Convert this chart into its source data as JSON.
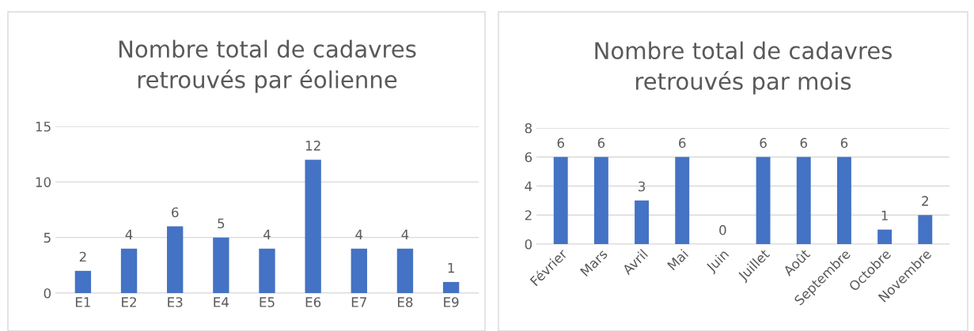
{
  "chart_data": [
    {
      "type": "bar",
      "title": "Nombre total de cadavres\nretrouvés par éolienne",
      "categories": [
        "E1",
        "E2",
        "E3",
        "E4",
        "E5",
        "E6",
        "E7",
        "E8",
        "E9"
      ],
      "values": [
        2,
        4,
        6,
        5,
        4,
        12,
        4,
        4,
        1
      ],
      "color": "#4472c4",
      "ylim": [
        0,
        15
      ],
      "yticks": [
        0,
        5,
        10,
        15
      ],
      "grid": "y",
      "data_labels": true
    },
    {
      "type": "bar",
      "title": "Nombre total de cadavres\nretrouvés par mois",
      "categories": [
        "Février",
        "Mars",
        "Avril",
        "Mai",
        "Juin",
        "Juillet",
        "Août",
        "Septembre",
        "Octobre",
        "Novembre"
      ],
      "values": [
        6,
        6,
        3,
        6,
        0,
        6,
        6,
        6,
        1,
        2
      ],
      "color": "#4472c4",
      "ylim": [
        0,
        8
      ],
      "yticks": [
        0,
        2,
        4,
        6,
        8
      ],
      "grid": "y",
      "data_labels": true
    }
  ]
}
